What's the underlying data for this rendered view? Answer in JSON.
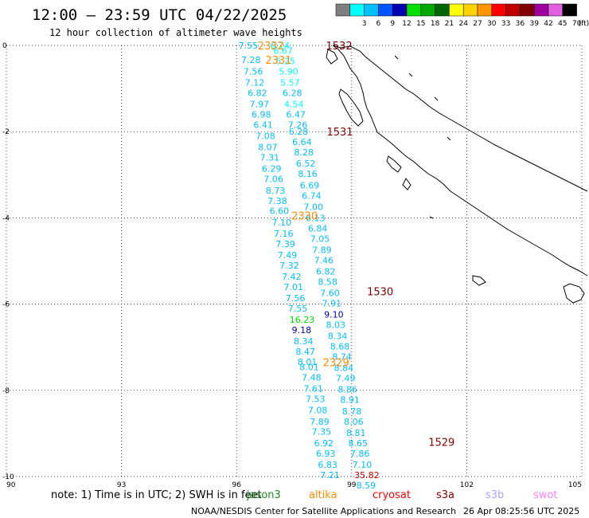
{
  "header": {
    "title": "12:00 – 23:59 UTC 04/22/2025",
    "subtitle": "12 hour collection of altimeter wave heights"
  },
  "colorbar": {
    "unit": "(ft)",
    "bins": [
      {
        "label": "",
        "color": "#7f7f7f"
      },
      {
        "label": "3",
        "color": "#00ffff"
      },
      {
        "label": "6",
        "color": "#00bfff"
      },
      {
        "label": "9",
        "color": "#0055ff"
      },
      {
        "label": "12",
        "color": "#0000b0"
      },
      {
        "label": "15",
        "color": "#00e000"
      },
      {
        "label": "18",
        "color": "#00a800"
      },
      {
        "label": "21",
        "color": "#006400"
      },
      {
        "label": "24",
        "color": "#ffff00"
      },
      {
        "label": "27",
        "color": "#ffd200"
      },
      {
        "label": "30",
        "color": "#ff9600"
      },
      {
        "label": "33",
        "color": "#ff0000"
      },
      {
        "label": "36",
        "color": "#c00000"
      },
      {
        "label": "39",
        "color": "#800000"
      },
      {
        "label": "42",
        "color": "#a000a0"
      },
      {
        "label": "45",
        "color": "#e060e0"
      },
      {
        "label": "70",
        "color": "#000000"
      }
    ]
  },
  "axes": {
    "lon_ticks": [
      "90",
      "93",
      "96",
      "99",
      "102",
      "105"
    ],
    "lat_ticks": [
      "0",
      "-2",
      "-4",
      "-6",
      "-8",
      "-10"
    ]
  },
  "legend": {
    "note": "note: 1) Time is in UTC; 2) SWH is in feet",
    "satellites": [
      {
        "name": "jason3",
        "color": "#1e8c1e"
      },
      {
        "name": "altika",
        "color": "#ff8c00"
      },
      {
        "name": "cryosat",
        "color": "#ff0000"
      },
      {
        "name": "s3a",
        "color": "#800000"
      },
      {
        "name": "s3b",
        "color": "#b0a0ff"
      },
      {
        "name": "swot",
        "color": "#ff80ff"
      }
    ]
  },
  "footer": {
    "credit": "NOAA/NESDIS Center for Satellite Applications and Research",
    "timestamp": "26 Apr 08:25:56 UTC 2025"
  },
  "chart_data": {
    "type": "map",
    "lon_range": [
      90,
      105
    ],
    "lat_range": [
      -10,
      0
    ],
    "pass_times": [
      {
        "label": "2332",
        "color": "#ff8c00",
        "lon": 96.55,
        "lat": 0.0
      },
      {
        "label": "2331",
        "color": "#ff8c00",
        "lon": 96.75,
        "lat": -0.33
      },
      {
        "label": "1532",
        "color": "#800000",
        "lon": 98.33,
        "lat": 0.0
      },
      {
        "label": "1531",
        "color": "#800000",
        "lon": 98.35,
        "lat": -2.0
      },
      {
        "label": "2330",
        "color": "#ff8c00",
        "lon": 97.43,
        "lat": -3.95
      },
      {
        "label": "1530",
        "color": "#800000",
        "lon": 99.4,
        "lat": -5.7
      },
      {
        "label": "2329",
        "color": "#ff8c00",
        "lon": 98.25,
        "lat": -7.35
      },
      {
        "label": "1529",
        "color": "#800000",
        "lon": 101.0,
        "lat": -9.2
      }
    ],
    "track_west": [
      {
        "v": "7.55",
        "lon": 96.05,
        "lat": 0.0,
        "c": "#00bfff"
      },
      {
        "v": "7.28",
        "lon": 96.12,
        "lat": -0.33,
        "c": "#00bfff"
      },
      {
        "v": "7.56",
        "lon": 96.18,
        "lat": -0.6,
        "c": "#00bfff"
      },
      {
        "v": "7.12",
        "lon": 96.22,
        "lat": -0.86,
        "c": "#00bfff"
      },
      {
        "v": "6.82",
        "lon": 96.29,
        "lat": -1.1,
        "c": "#00bfff"
      },
      {
        "v": "7.97",
        "lon": 96.34,
        "lat": -1.36,
        "c": "#00bfff"
      },
      {
        "v": "6.98",
        "lon": 96.39,
        "lat": -1.6,
        "c": "#00bfff"
      },
      {
        "v": "6.41",
        "lon": 96.44,
        "lat": -1.84,
        "c": "#00bfff"
      },
      {
        "v": "7.08",
        "lon": 96.5,
        "lat": -2.1,
        "c": "#00bfff"
      },
      {
        "v": "8.07",
        "lon": 96.56,
        "lat": -2.36,
        "c": "#00bfff"
      },
      {
        "v": "7.31",
        "lon": 96.61,
        "lat": -2.6,
        "c": "#00bfff"
      },
      {
        "v": "6.29",
        "lon": 96.66,
        "lat": -2.86,
        "c": "#00bfff"
      },
      {
        "v": "7.06",
        "lon": 96.71,
        "lat": -3.1,
        "c": "#00bfff"
      },
      {
        "v": "8.73",
        "lon": 96.76,
        "lat": -3.36,
        "c": "#00bfff"
      },
      {
        "v": "7.38",
        "lon": 96.81,
        "lat": -3.6,
        "c": "#00bfff"
      },
      {
        "v": "6.60",
        "lon": 96.86,
        "lat": -3.84,
        "c": "#00bfff"
      },
      {
        "v": "7.10",
        "lon": 96.92,
        "lat": -4.1,
        "c": "#00bfff"
      },
      {
        "v": "7.16",
        "lon": 96.97,
        "lat": -4.36,
        "c": "#00bfff"
      },
      {
        "v": "7.39",
        "lon": 97.02,
        "lat": -4.6,
        "c": "#00bfff"
      },
      {
        "v": "7.49",
        "lon": 97.07,
        "lat": -4.86,
        "c": "#00bfff"
      },
      {
        "v": "7.32",
        "lon": 97.12,
        "lat": -5.1,
        "c": "#00bfff"
      },
      {
        "v": "7.42",
        "lon": 97.18,
        "lat": -5.36,
        "c": "#00bfff"
      },
      {
        "v": "7.01",
        "lon": 97.23,
        "lat": -5.6,
        "c": "#00bfff"
      },
      {
        "v": "7.56",
        "lon": 97.28,
        "lat": -5.86,
        "c": "#00bfff"
      },
      {
        "v": "7.55",
        "lon": 97.34,
        "lat": -6.1,
        "c": "#00bfff"
      },
      {
        "v": "16.23",
        "lon": 97.38,
        "lat": -6.36,
        "c": "#00e000"
      },
      {
        "v": "9.18",
        "lon": 97.44,
        "lat": -6.6,
        "c": "#0000b0"
      },
      {
        "v": "8.34",
        "lon": 97.49,
        "lat": -6.86,
        "c": "#00bfff"
      },
      {
        "v": "8.47",
        "lon": 97.54,
        "lat": -7.1,
        "c": "#00bfff"
      },
      {
        "v": "8.01",
        "lon": 97.59,
        "lat": -7.34,
        "c": "#00bfff"
      },
      {
        "v": "8.01",
        "lon": 97.64,
        "lat": -7.46,
        "c": "#00bfff"
      },
      {
        "v": "7.48",
        "lon": 97.7,
        "lat": -7.7,
        "c": "#00bfff"
      },
      {
        "v": "7.61",
        "lon": 97.75,
        "lat": -7.96,
        "c": "#00bfff"
      },
      {
        "v": "7.53",
        "lon": 97.8,
        "lat": -8.2,
        "c": "#00bfff"
      },
      {
        "v": "7.08",
        "lon": 97.86,
        "lat": -8.46,
        "c": "#00bfff"
      },
      {
        "v": "7.89",
        "lon": 97.91,
        "lat": -8.72,
        "c": "#00bfff"
      },
      {
        "v": "7.35",
        "lon": 97.96,
        "lat": -8.96,
        "c": "#00bfff"
      },
      {
        "v": "6.92",
        "lon": 98.02,
        "lat": -9.22,
        "c": "#00bfff"
      },
      {
        "v": "6.93",
        "lon": 98.07,
        "lat": -9.46,
        "c": "#00bfff"
      },
      {
        "v": "6.83",
        "lon": 98.12,
        "lat": -9.72,
        "c": "#00bfff"
      },
      {
        "v": "7.21",
        "lon": 98.18,
        "lat": -9.96,
        "c": "#00bfff"
      }
    ],
    "track_east": [
      {
        "v": "6.74",
        "lon": 96.88,
        "lat": 0.0,
        "c": "#00ffff"
      },
      {
        "v": "6.67",
        "lon": 96.96,
        "lat": -0.12,
        "c": "#00ffff"
      },
      {
        "v": "5.25",
        "lon": 97.02,
        "lat": -0.36,
        "c": "#00ffff"
      },
      {
        "v": "5.90",
        "lon": 97.1,
        "lat": -0.6,
        "c": "#00ffff"
      },
      {
        "v": "5.57",
        "lon": 97.14,
        "lat": -0.86,
        "c": "#00ffff"
      },
      {
        "v": "6.28",
        "lon": 97.2,
        "lat": -1.1,
        "c": "#00bfff"
      },
      {
        "v": "4.54",
        "lon": 97.24,
        "lat": -1.36,
        "c": "#00ffff"
      },
      {
        "v": "6.47",
        "lon": 97.29,
        "lat": -1.6,
        "c": "#00bfff"
      },
      {
        "v": "7.26",
        "lon": 97.34,
        "lat": -1.84,
        "c": "#00bfff"
      },
      {
        "v": "6.28",
        "lon": 97.36,
        "lat": -2.0,
        "c": "#00bfff"
      },
      {
        "v": "6.64",
        "lon": 97.45,
        "lat": -2.24,
        "c": "#00bfff"
      },
      {
        "v": "8.28",
        "lon": 97.5,
        "lat": -2.48,
        "c": "#00bfff"
      },
      {
        "v": "6.52",
        "lon": 97.55,
        "lat": -2.74,
        "c": "#00bfff"
      },
      {
        "v": "8.16",
        "lon": 97.6,
        "lat": -2.98,
        "c": "#00bfff"
      },
      {
        "v": "6.69",
        "lon": 97.65,
        "lat": -3.24,
        "c": "#00bfff"
      },
      {
        "v": "6.74",
        "lon": 97.7,
        "lat": -3.48,
        "c": "#00bfff"
      },
      {
        "v": "7.00",
        "lon": 97.75,
        "lat": -3.74,
        "c": "#00bfff"
      },
      {
        "v": "6.13",
        "lon": 97.8,
        "lat": -4.0,
        "c": "#00bfff"
      },
      {
        "v": "6.84",
        "lon": 97.86,
        "lat": -4.24,
        "c": "#00bfff"
      },
      {
        "v": "7.05",
        "lon": 97.92,
        "lat": -4.48,
        "c": "#00bfff"
      },
      {
        "v": "7.89",
        "lon": 97.97,
        "lat": -4.74,
        "c": "#00bfff"
      },
      {
        "v": "7.46",
        "lon": 98.02,
        "lat": -4.98,
        "c": "#00bfff"
      },
      {
        "v": "6.82",
        "lon": 98.07,
        "lat": -5.24,
        "c": "#00bfff"
      },
      {
        "v": "8.58",
        "lon": 98.12,
        "lat": -5.48,
        "c": "#00bfff"
      },
      {
        "v": "7.60",
        "lon": 98.18,
        "lat": -5.74,
        "c": "#00bfff"
      },
      {
        "v": "7.91",
        "lon": 98.23,
        "lat": -5.98,
        "c": "#00bfff"
      },
      {
        "v": "9.10",
        "lon": 98.28,
        "lat": -6.24,
        "c": "#0000b0"
      },
      {
        "v": "8.03",
        "lon": 98.33,
        "lat": -6.48,
        "c": "#00bfff"
      },
      {
        "v": "8.34",
        "lon": 98.38,
        "lat": -6.74,
        "c": "#00bfff"
      },
      {
        "v": "8.68",
        "lon": 98.44,
        "lat": -6.98,
        "c": "#00bfff"
      },
      {
        "v": "8.74",
        "lon": 98.49,
        "lat": -7.22,
        "c": "#00bfff"
      },
      {
        "v": "8.84",
        "lon": 98.54,
        "lat": -7.48,
        "c": "#00bfff"
      },
      {
        "v": "7.49",
        "lon": 98.59,
        "lat": -7.72,
        "c": "#00bfff"
      },
      {
        "v": "8.86",
        "lon": 98.64,
        "lat": -7.98,
        "c": "#00bfff"
      },
      {
        "v": "8.91",
        "lon": 98.7,
        "lat": -8.22,
        "c": "#00bfff"
      },
      {
        "v": "8.78",
        "lon": 98.75,
        "lat": -8.48,
        "c": "#00bfff"
      },
      {
        "v": "8.06",
        "lon": 98.8,
        "lat": -8.72,
        "c": "#00bfff"
      },
      {
        "v": "8.81",
        "lon": 98.86,
        "lat": -8.98,
        "c": "#00bfff"
      },
      {
        "v": "8.65",
        "lon": 98.91,
        "lat": -9.22,
        "c": "#00bfff"
      },
      {
        "v": "7.86",
        "lon": 98.96,
        "lat": -9.46,
        "c": "#00bfff"
      },
      {
        "v": "7.10",
        "lon": 99.02,
        "lat": -9.72,
        "c": "#00bfff"
      },
      {
        "v": "35.82",
        "lon": 99.07,
        "lat": -9.96,
        "c": "#c00000"
      },
      {
        "v": "8.59",
        "lon": 99.12,
        "lat": -10.2,
        "c": "#00bfff"
      }
    ]
  }
}
